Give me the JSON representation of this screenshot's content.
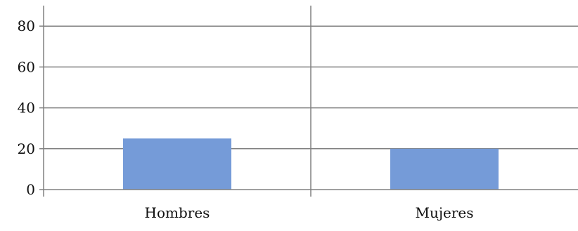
{
  "chart_data": {
    "type": "bar",
    "categories": [
      "Hombres",
      "Mujeres"
    ],
    "series": [
      {
        "values": [
          25,
          20
        ],
        "color": "#759BD8"
      }
    ],
    "ylim": [
      0,
      90
    ],
    "yticks": [
      0,
      20,
      40,
      60,
      80
    ],
    "ytick_labels": [
      "0",
      "20",
      "40",
      "60",
      "80"
    ],
    "grid": true,
    "title": "",
    "xlabel": "",
    "ylabel": ""
  },
  "colors": {
    "bar": "#759BD8",
    "axis": "#808080",
    "grid": "#808080",
    "text": "#111111"
  }
}
